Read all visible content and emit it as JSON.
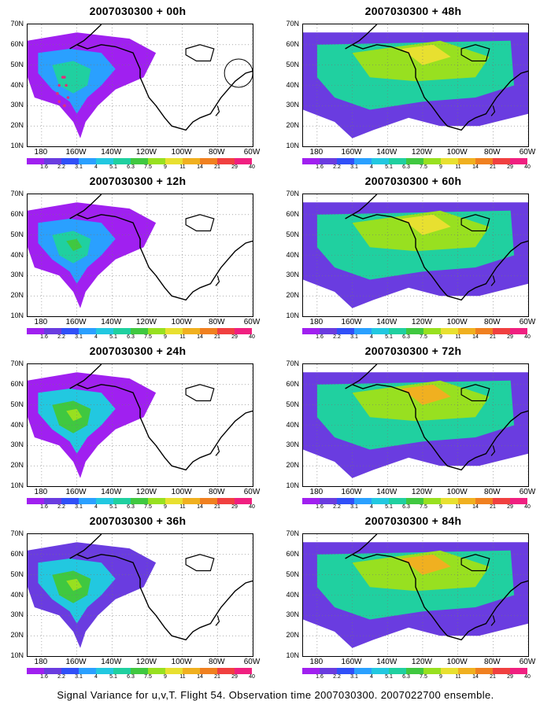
{
  "panels": [
    {
      "title": "2007030300 + 00h",
      "level": 0
    },
    {
      "title": "2007030300 + 48h",
      "level": 4
    },
    {
      "title": "2007030300 + 12h",
      "level": 1
    },
    {
      "title": "2007030300 + 60h",
      "level": 5
    },
    {
      "title": "2007030300 + 24h",
      "level": 2
    },
    {
      "title": "2007030300 + 72h",
      "level": 6
    },
    {
      "title": "2007030300 + 36h",
      "level": 3
    },
    {
      "title": "2007030300 + 84h",
      "level": 7
    }
  ],
  "lat_labels": [
    "70N",
    "60N",
    "50N",
    "40N",
    "30N",
    "20N",
    "10N"
  ],
  "lon_labels": [
    "180",
    "160W",
    "140W",
    "120W",
    "100W",
    "80W",
    "60W"
  ],
  "colorbar": {
    "colors": [
      "#a020f0",
      "#6a3ce0",
      "#3050f8",
      "#2aa0ff",
      "#22c8e0",
      "#20d0a0",
      "#40c840",
      "#98e020",
      "#e8e030",
      "#f0b020",
      "#f08020",
      "#f04040",
      "#f02080"
    ],
    "labels": [
      "1.6",
      "2.2",
      "3.1",
      "4",
      "5.1",
      "6.3",
      "7.5",
      "9",
      "11",
      "14",
      "21",
      "29",
      "40"
    ]
  },
  "caption": "Signal Variance for u,v,T. Flight 54. Observation time 2007030300. 2007022700 ensemble."
}
